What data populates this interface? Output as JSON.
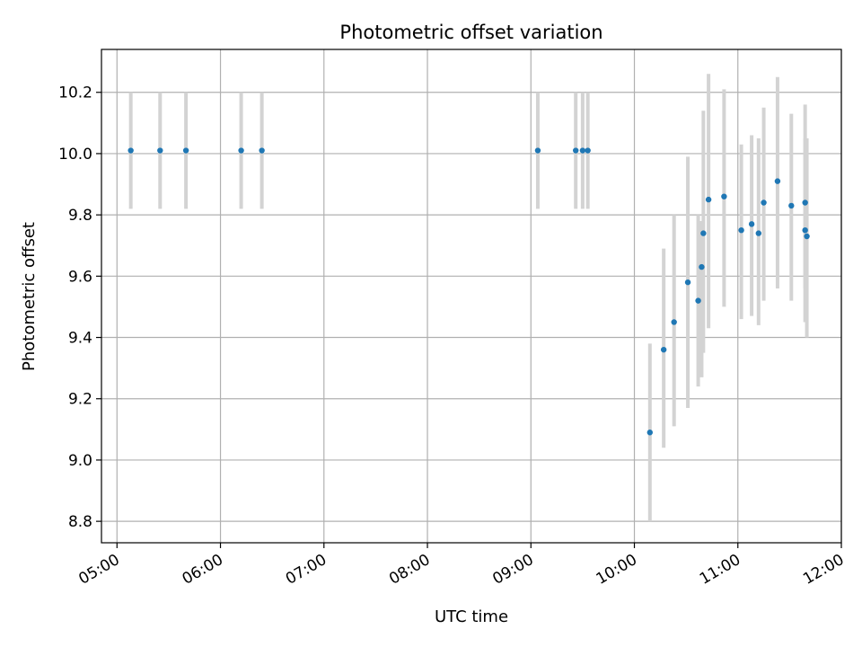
{
  "chart_data": {
    "type": "scatter",
    "title": "Photometric offset variation",
    "xlabel": "UTC time",
    "ylabel": "Photometric offset",
    "x_unit": "UTC time of day (HH:MM)",
    "xlim": [
      "04:51",
      "12:00"
    ],
    "ylim": [
      8.73,
      10.34
    ],
    "x_ticks": [
      "05:00",
      "06:00",
      "07:00",
      "08:00",
      "09:00",
      "10:00",
      "11:00",
      "12:00"
    ],
    "y_ticks": [
      8.8,
      9.0,
      9.2,
      9.4,
      9.6,
      9.8,
      10.0,
      10.2
    ],
    "y_tick_labels": [
      "8.8",
      "9.0",
      "9.2",
      "9.4",
      "9.6",
      "9.8",
      "10.0",
      "10.2"
    ],
    "grid": true,
    "legend": "none",
    "colors": {
      "point": "#1f77b4",
      "errorbar": "#d3d3d3",
      "grid": "#b0b0b0"
    },
    "points": [
      {
        "x": "05:08",
        "y": 10.01,
        "ylo": 9.82,
        "yhi": 10.2
      },
      {
        "x": "05:25",
        "y": 10.01,
        "ylo": 9.82,
        "yhi": 10.2
      },
      {
        "x": "05:40",
        "y": 10.01,
        "ylo": 9.82,
        "yhi": 10.2
      },
      {
        "x": "06:12",
        "y": 10.01,
        "ylo": 9.82,
        "yhi": 10.2
      },
      {
        "x": "06:24",
        "y": 10.01,
        "ylo": 9.82,
        "yhi": 10.2
      },
      {
        "x": "09:04",
        "y": 10.01,
        "ylo": 9.82,
        "yhi": 10.2
      },
      {
        "x": "09:26",
        "y": 10.01,
        "ylo": 9.82,
        "yhi": 10.2
      },
      {
        "x": "09:30",
        "y": 10.01,
        "ylo": 9.82,
        "yhi": 10.2
      },
      {
        "x": "09:33",
        "y": 10.01,
        "ylo": 9.82,
        "yhi": 10.2
      },
      {
        "x": "10:09",
        "y": 9.09,
        "ylo": 8.8,
        "yhi": 9.38
      },
      {
        "x": "10:17",
        "y": 9.36,
        "ylo": 9.04,
        "yhi": 9.69
      },
      {
        "x": "10:23",
        "y": 9.45,
        "ylo": 9.11,
        "yhi": 9.8
      },
      {
        "x": "10:31",
        "y": 9.58,
        "ylo": 9.17,
        "yhi": 9.99
      },
      {
        "x": "10:37",
        "y": 9.52,
        "ylo": 9.24,
        "yhi": 9.8
      },
      {
        "x": "10:39",
        "y": 9.63,
        "ylo": 9.27,
        "yhi": 9.78
      },
      {
        "x": "10:40",
        "y": 9.74,
        "ylo": 9.35,
        "yhi": 10.14
      },
      {
        "x": "10:43",
        "y": 9.85,
        "ylo": 9.43,
        "yhi": 10.26
      },
      {
        "x": "10:52",
        "y": 9.86,
        "ylo": 9.5,
        "yhi": 10.21
      },
      {
        "x": "11:02",
        "y": 9.75,
        "ylo": 9.46,
        "yhi": 10.03
      },
      {
        "x": "11:08",
        "y": 9.77,
        "ylo": 9.47,
        "yhi": 10.06
      },
      {
        "x": "11:12",
        "y": 9.74,
        "ylo": 9.44,
        "yhi": 10.05
      },
      {
        "x": "11:15",
        "y": 9.84,
        "ylo": 9.52,
        "yhi": 10.15
      },
      {
        "x": "11:23",
        "y": 9.91,
        "ylo": 9.56,
        "yhi": 10.25
      },
      {
        "x": "11:31",
        "y": 9.83,
        "ylo": 9.52,
        "yhi": 10.13
      },
      {
        "x": "11:39",
        "y": 9.84,
        "ylo": 9.56,
        "yhi": 10.16
      },
      {
        "x": "11:39",
        "y": 9.75,
        "ylo": 9.45,
        "yhi": 10.05
      },
      {
        "x": "11:40",
        "y": 9.73,
        "ylo": 9.4,
        "yhi": 10.05
      }
    ]
  }
}
